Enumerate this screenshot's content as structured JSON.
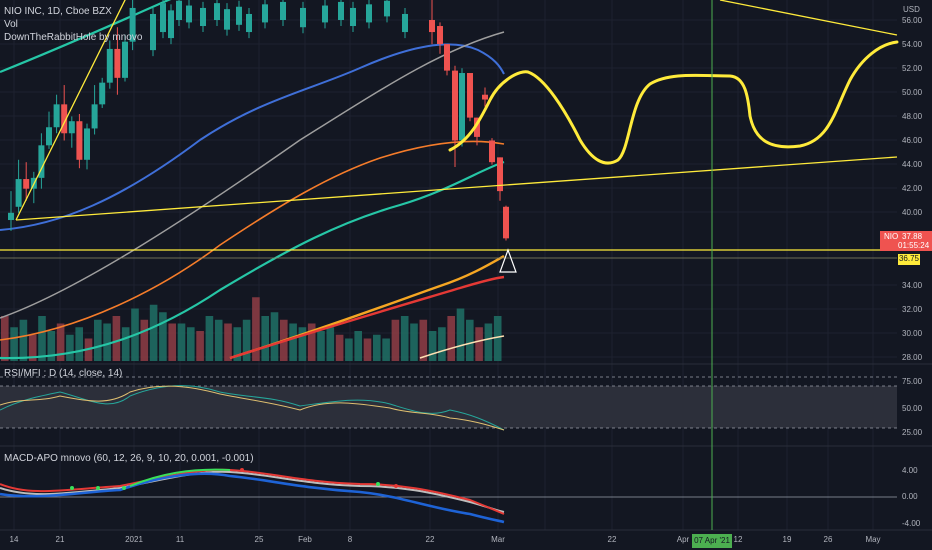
{
  "header": {
    "symbol_title": "NIO INC, 1D, Cboe BZX",
    "volume_label": "Vol",
    "indicator_label": "DownTheRabbitHole by mnovo"
  },
  "rsi": {
    "label": "RSI/MFI : D (14, close, 14)"
  },
  "macd": {
    "label": "MACD-APO mnovo (60, 12, 26, 9, 10, 20, 0.001, -0.001)"
  },
  "price_axis": {
    "currency": "USD",
    "ticks": [
      "56.00",
      "54.00",
      "52.00",
      "50.00",
      "48.00",
      "46.00",
      "44.00",
      "42.00",
      "40.00",
      "34.00",
      "32.00",
      "30.00",
      "28.00"
    ],
    "current_symbol": "NIO",
    "current_price": "37.88",
    "countdown": "01:55:24",
    "hline_label": "36.75"
  },
  "rsi_axis": {
    "ticks": [
      "75.00",
      "50.00",
      "25.00"
    ]
  },
  "macd_axis": {
    "ticks": [
      "4.00",
      "0.00",
      "-4.00"
    ]
  },
  "time_axis": {
    "ticks": [
      "14",
      "21",
      "2021",
      "11",
      "25",
      "Feb",
      "8",
      "22",
      "Mar",
      "22",
      "Apr",
      "12",
      "19",
      "26",
      "May"
    ],
    "crosshair_label": "07 Apr '21"
  },
  "colors": {
    "background": "#131722",
    "up": "#26a69a",
    "down": "#ef5350",
    "drawing": "#ffeb3b",
    "crosshair": "#4caf50"
  },
  "chart_data": {
    "type": "candlestick",
    "title": "NIO INC, 1D, Cboe BZX",
    "ylabel": "USD",
    "ylim": [
      28,
      57
    ],
    "candles": [
      {
        "o": 39.4,
        "h": 41.8,
        "l": 38.5,
        "c": 40.0
      },
      {
        "o": 40.5,
        "h": 44.4,
        "l": 40.0,
        "c": 42.8
      },
      {
        "o": 42.8,
        "h": 44.2,
        "l": 41.0,
        "c": 42.0
      },
      {
        "o": 42.0,
        "h": 43.4,
        "l": 40.8,
        "c": 42.9
      },
      {
        "o": 42.9,
        "h": 46.6,
        "l": 42.0,
        "c": 45.6
      },
      {
        "o": 45.6,
        "h": 48.4,
        "l": 45.3,
        "c": 47.1
      },
      {
        "o": 47.1,
        "h": 49.8,
        "l": 46.6,
        "c": 49.0
      },
      {
        "o": 49.0,
        "h": 50.6,
        "l": 46.0,
        "c": 46.6
      },
      {
        "o": 46.6,
        "h": 48.0,
        "l": 45.4,
        "c": 47.6
      },
      {
        "o": 47.6,
        "h": 48.2,
        "l": 43.7,
        "c": 44.4
      },
      {
        "o": 44.4,
        "h": 47.4,
        "l": 43.6,
        "c": 47.0
      },
      {
        "o": 47.0,
        "h": 50.6,
        "l": 46.5,
        "c": 49.0
      },
      {
        "o": 49.0,
        "h": 51.2,
        "l": 48.7,
        "c": 50.8
      },
      {
        "o": 50.8,
        "h": 54.3,
        "l": 50.3,
        "c": 53.6
      },
      {
        "o": 53.6,
        "h": 55.4,
        "l": 49.8,
        "c": 51.2
      },
      {
        "o": 51.2,
        "h": 54.8,
        "l": 50.9,
        "c": 54.2
      },
      {
        "o": 54.2,
        "h": 58.0,
        "l": 53.5,
        "c": 57.0
      }
    ],
    "late_candles": [
      {
        "o": 56.0,
        "h": 58.0,
        "l": 54.0,
        "c": 55.0
      },
      {
        "o": 55.5,
        "h": 55.8,
        "l": 53.2,
        "c": 54.0
      },
      {
        "o": 54.0,
        "h": 53.5,
        "l": 51.4,
        "c": 51.8
      },
      {
        "o": 51.8,
        "h": 52.2,
        "l": 43.8,
        "c": 46.0
      },
      {
        "o": 46.0,
        "h": 52.0,
        "l": 45.5,
        "c": 51.6
      },
      {
        "o": 51.6,
        "h": 51.4,
        "l": 47.6,
        "c": 47.9
      },
      {
        "o": 47.9,
        "h": 47.9,
        "l": 45.6,
        "c": 46.3
      },
      {
        "o": 49.8,
        "h": 50.4,
        "l": 48.8,
        "c": 49.4
      },
      {
        "o": 46.0,
        "h": 46.2,
        "l": 44.0,
        "c": 44.2
      },
      {
        "o": 44.6,
        "h": 44.6,
        "l": 41.0,
        "c": 41.8
      },
      {
        "o": 40.5,
        "h": 40.6,
        "l": 37.7,
        "c": 37.88
      }
    ],
    "volume_levels": [
      0.6,
      0.45,
      0.55,
      0.35,
      0.6,
      0.4,
      0.5,
      0.35,
      0.45,
      0.3,
      0.55,
      0.5,
      0.6,
      0.45,
      0.7,
      0.55,
      0.75,
      0.65,
      0.5,
      0.5,
      0.45,
      0.4,
      0.6,
      0.55,
      0.5,
      0.45,
      0.55,
      0.85,
      0.6,
      0.65,
      0.55,
      0.5,
      0.45,
      0.5,
      0.4,
      0.45,
      0.35,
      0.3,
      0.4,
      0.3,
      0.35,
      0.3,
      0.55,
      0.6,
      0.5,
      0.55,
      0.4,
      0.45,
      0.6,
      0.7,
      0.55,
      0.45,
      0.5,
      0.6
    ]
  }
}
